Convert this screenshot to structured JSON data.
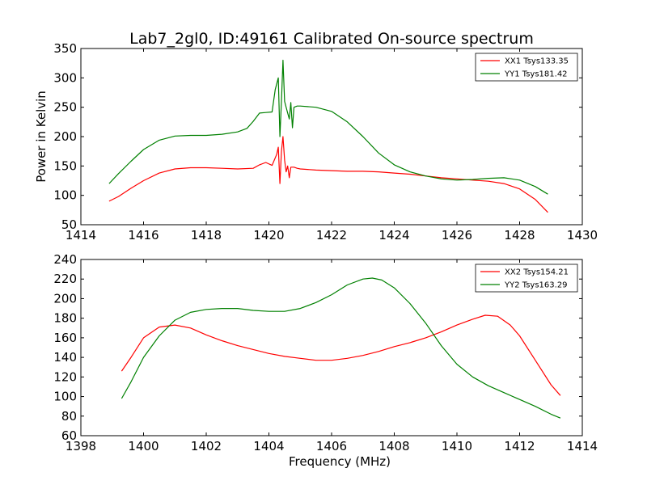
{
  "chart_data": [
    {
      "type": "line",
      "title": "Lab7_2gl0, ID:49161 Calibrated On-source spectrum",
      "xlabel": "",
      "ylabel": "Power in Kelvin",
      "xlim": [
        1414,
        1430
      ],
      "ylim": [
        50,
        350
      ],
      "xticks": [
        1414,
        1416,
        1418,
        1420,
        1422,
        1424,
        1426,
        1428,
        1430
      ],
      "yticks": [
        50,
        100,
        150,
        200,
        250,
        300,
        350
      ],
      "grid": false,
      "legend_position": "top-right",
      "series": [
        {
          "name": "XX1 Tsys133.35",
          "color": "#ff0000",
          "x": [
            1414.9,
            1415.2,
            1415.6,
            1416.0,
            1416.5,
            1417.0,
            1417.5,
            1418.0,
            1418.5,
            1419.0,
            1419.5,
            1419.7,
            1419.9,
            1420.1,
            1420.25,
            1420.3,
            1420.35,
            1420.4,
            1420.45,
            1420.5,
            1420.55,
            1420.6,
            1420.65,
            1420.7,
            1420.75,
            1420.8,
            1420.9,
            1421.0,
            1421.5,
            1422.0,
            1422.5,
            1423.0,
            1423.5,
            1424.0,
            1424.5,
            1425.0,
            1425.5,
            1426.0,
            1426.5,
            1427.0,
            1427.5,
            1428.0,
            1428.5,
            1428.9
          ],
          "values": [
            90,
            98,
            112,
            125,
            138,
            145,
            147,
            147,
            146,
            145,
            146,
            152,
            156,
            151,
            170,
            182,
            120,
            175,
            200,
            160,
            140,
            150,
            130,
            148,
            148,
            148,
            146,
            145,
            143,
            142,
            141,
            141,
            140,
            138,
            136,
            133,
            130,
            128,
            126,
            124,
            120,
            111,
            93,
            71
          ]
        },
        {
          "name": "YY1 Tsys181.42",
          "color": "#008000",
          "x": [
            1414.9,
            1415.2,
            1415.6,
            1416.0,
            1416.5,
            1417.0,
            1417.5,
            1418.0,
            1418.5,
            1419.0,
            1419.3,
            1419.5,
            1419.7,
            1419.9,
            1420.1,
            1420.2,
            1420.3,
            1420.35,
            1420.4,
            1420.45,
            1420.5,
            1420.55,
            1420.6,
            1420.65,
            1420.7,
            1420.75,
            1420.8,
            1420.9,
            1421.0,
            1421.5,
            1422.0,
            1422.5,
            1423.0,
            1423.5,
            1424.0,
            1424.5,
            1425.0,
            1425.5,
            1426.0,
            1426.5,
            1427.0,
            1427.5,
            1428.0,
            1428.5,
            1428.9
          ],
          "values": [
            120,
            137,
            158,
            178,
            194,
            201,
            202,
            202,
            204,
            208,
            214,
            226,
            240,
            241,
            242,
            280,
            300,
            200,
            260,
            330,
            260,
            250,
            240,
            230,
            258,
            215,
            250,
            252,
            252,
            250,
            243,
            225,
            200,
            172,
            152,
            140,
            133,
            128,
            126,
            127,
            129,
            130,
            126,
            115,
            102
          ]
        }
      ]
    },
    {
      "type": "line",
      "title": "",
      "xlabel": "Frequency (MHz)",
      "ylabel": "",
      "xlim": [
        1398,
        1414
      ],
      "ylim": [
        60,
        240
      ],
      "xticks": [
        1398,
        1400,
        1402,
        1404,
        1406,
        1408,
        1410,
        1412,
        1414
      ],
      "yticks": [
        60,
        80,
        100,
        120,
        140,
        160,
        180,
        200,
        220,
        240
      ],
      "grid": false,
      "legend_position": "top-right",
      "series": [
        {
          "name": "XX2 Tsys154.21",
          "color": "#ff0000",
          "x": [
            1399.3,
            1399.6,
            1400.0,
            1400.5,
            1401.0,
            1401.5,
            1402.0,
            1402.5,
            1403.0,
            1403.5,
            1404.0,
            1404.5,
            1405.0,
            1405.5,
            1406.0,
            1406.5,
            1407.0,
            1407.5,
            1408.0,
            1408.5,
            1409.0,
            1409.5,
            1410.0,
            1410.5,
            1410.9,
            1411.3,
            1411.7,
            1412.0,
            1412.5,
            1413.0,
            1413.3
          ],
          "values": [
            126,
            140,
            160,
            171,
            173,
            170,
            163,
            157,
            152,
            148,
            144,
            141,
            139,
            137,
            137,
            139,
            142,
            146,
            151,
            155,
            160,
            166,
            173,
            179,
            183,
            182,
            173,
            162,
            137,
            112,
            101
          ]
        },
        {
          "name": "YY2 Tsys163.29",
          "color": "#008000",
          "x": [
            1399.3,
            1399.6,
            1400.0,
            1400.5,
            1401.0,
            1401.5,
            1402.0,
            1402.5,
            1403.0,
            1403.5,
            1404.0,
            1404.5,
            1405.0,
            1405.5,
            1406.0,
            1406.5,
            1407.0,
            1407.3,
            1407.6,
            1408.0,
            1408.5,
            1409.0,
            1409.5,
            1410.0,
            1410.5,
            1411.0,
            1411.5,
            1412.0,
            1412.5,
            1413.0,
            1413.3
          ],
          "values": [
            98,
            115,
            140,
            162,
            178,
            186,
            189,
            190,
            190,
            188,
            187,
            187,
            190,
            196,
            204,
            214,
            220,
            221,
            219,
            211,
            195,
            175,
            152,
            133,
            120,
            111,
            104,
            97,
            90,
            82,
            78
          ]
        }
      ]
    }
  ]
}
